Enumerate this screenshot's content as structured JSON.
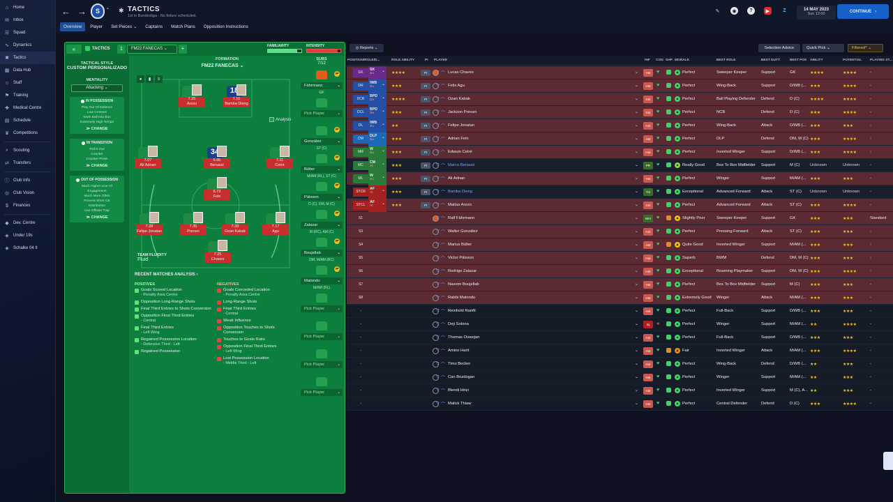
{
  "colors": {
    "accent": "#1560c9",
    "pitch": "#0c7e3d",
    "red_row": "#5b2a33"
  },
  "sidebar": {
    "items": [
      {
        "label": "Home",
        "icon": "home-icon"
      },
      {
        "label": "Inbox",
        "icon": "inbox-icon"
      },
      {
        "label": "Squad",
        "icon": "squad-icon"
      },
      {
        "label": "Dynamics",
        "icon": "dynamics-icon"
      },
      {
        "label": "Tactics",
        "icon": "tactics-icon",
        "active": true
      },
      {
        "label": "Data Hub",
        "icon": "data-hub-icon"
      },
      {
        "label": "Staff",
        "icon": "staff-icon"
      },
      {
        "label": "Training",
        "icon": "training-icon"
      },
      {
        "label": "Medical Centre",
        "icon": "medical-icon"
      },
      {
        "label": "Schedule",
        "icon": "schedule-icon"
      },
      {
        "label": "Competitions",
        "icon": "competitions-icon"
      },
      {
        "label": "Scouting",
        "icon": "scouting-icon"
      },
      {
        "label": "Transfers",
        "icon": "transfers-icon"
      },
      {
        "label": "Club Info",
        "icon": "club-info-icon"
      },
      {
        "label": "Club Vision",
        "icon": "club-vision-icon"
      },
      {
        "label": "Finances",
        "icon": "finances-icon"
      },
      {
        "label": "Dev. Centre",
        "icon": "dev-centre-icon"
      },
      {
        "label": "Under 19s",
        "icon": "team-icon"
      },
      {
        "label": "Schalke 04 II",
        "icon": "team-icon"
      }
    ]
  },
  "header": {
    "title": "TACTICS",
    "subtitle": "1st in Bundesliga - No fixture scheduled.",
    "date": "14 MAY 2023",
    "time": "Sun 12:00",
    "continue_label": "CONTINUE",
    "tabs": [
      "Overview",
      "Player",
      "Set Pieces",
      "Captains",
      "Match Plans",
      "Opposition Instructions"
    ]
  },
  "tactics_bar": {
    "label": "TACTICS",
    "tactic_number": "1",
    "tactic_name": "FM22 FANECAS",
    "familiarity_label": "FAMILIARITY",
    "familiarity": 0.88,
    "intensity_label": "INTENSITY",
    "intensity": 0.92
  },
  "style": {
    "title": "TACTICAL STYLE",
    "name": "CUSTOM PERSONALIZADO",
    "mentality_title": "MENTALITY",
    "mentality": "Attacking",
    "phases": [
      {
        "title": "IN POSSESSION",
        "lines": [
          "Play Out Of Defence",
          "Low Crosses",
          "Work Ball Into Box",
          "Extremely High Tempo"
        ],
        "change": "CHANGE"
      },
      {
        "title": "IN TRANSITION",
        "lines": [
          "Roll It Out",
          "Counter",
          "Counter-Press"
        ],
        "change": "CHANGE"
      },
      {
        "title": "OUT OF POSSESSION",
        "lines": [
          "Much Higher Line Of",
          "Engagement",
          "Much More Often",
          "Prevent Short GK",
          "Distribution",
          "Use Offside Trap"
        ],
        "change": "CHANGE"
      }
    ]
  },
  "formation": {
    "label": "FORMATION",
    "value": "FM22 FANECAS",
    "analysis": "Analysis"
  },
  "players_on_pitch": [
    {
      "rating": "7.25",
      "name": "Arezo",
      "num": ""
    },
    {
      "rating": "7.10",
      "name": "Bamba Dieng",
      "num": "18"
    },
    {
      "rating": "7.07",
      "name": "Ali Adnan",
      "num": ""
    },
    {
      "rating": "6.86",
      "name": "Benassi",
      "num": "34"
    },
    {
      "rating": "7.11",
      "name": "Cetré",
      "num": ""
    },
    {
      "rating": "6.73",
      "name": "Fein",
      "num": ""
    },
    {
      "rating": "7.28",
      "name": "Felipe Jonatan",
      "num": ""
    },
    {
      "rating": "7.35",
      "name": "Porozo",
      "num": ""
    },
    {
      "rating": "7.39",
      "name": "Ozan Kabak",
      "num": ""
    },
    {
      "rating": "7.17",
      "name": "Agu",
      "num": ""
    },
    {
      "rating": "7.25",
      "name": "Chaves",
      "num": ""
    }
  ],
  "fluidity": {
    "label": "TEAM FLUIDITY",
    "value": "Fluid"
  },
  "analysis": {
    "title": "RECENT MATCHES ANALYSIS",
    "positives_title": "POSITIVES",
    "negatives_title": "NEGATIVES",
    "positives": [
      {
        "text": "Goals Scored Location",
        "sub": "- Penalty Area Centre"
      },
      {
        "text": "Opposition Long-Range Shots",
        "sub": ""
      },
      {
        "text": "Final Third Entries to Shots Conversion",
        "sub": ""
      },
      {
        "text": "Opposition Final Third Entries",
        "sub": "- Central"
      },
      {
        "text": "Final Third Entries",
        "sub": "- Left Wing"
      },
      {
        "text": "Regained Possession Location",
        "sub": "- Defensive Third - Left"
      },
      {
        "text": "Regained Possession",
        "sub": ""
      }
    ],
    "negatives": [
      {
        "text": "Goals Conceded Location",
        "sub": "- Penalty Area Centre"
      },
      {
        "text": "Long-Range Shots",
        "sub": ""
      },
      {
        "text": "Final Third Entries",
        "sub": "- Central"
      },
      {
        "text": "Weak Influence",
        "sub": ""
      },
      {
        "text": "Opposition Touches to Shots Conversion",
        "sub": ""
      },
      {
        "text": "Touches to Goals Ratio",
        "sub": ""
      },
      {
        "text": "Opposition Final Third Entries",
        "sub": "- Left Wing"
      },
      {
        "text": "Lost Possession Location",
        "sub": "- Middle Third - Left"
      }
    ]
  },
  "subs": {
    "title": "SUBS",
    "count": "7/12",
    "slots": [
      {
        "name": "Fährmann",
        "role": "GK"
      },
      {
        "name": "Pick Player",
        "role": ""
      },
      {
        "name": "González",
        "role": "ST (C)"
      },
      {
        "name": "Bülter",
        "role": "M/AM (RL), ST (C)"
      },
      {
        "name": "Pálsson",
        "role": "D (C), DM, M (C)"
      },
      {
        "name": "Zalazar",
        "role": "M (RC), AM (C)"
      },
      {
        "name": "Boujellab",
        "role": "DM, M/AM (RC)"
      },
      {
        "name": "Matondo",
        "role": "M/AM (RL)"
      },
      {
        "name": "Pick Player",
        "role": ""
      },
      {
        "name": "Pick Player",
        "role": ""
      },
      {
        "name": "Pick Player",
        "role": ""
      },
      {
        "name": "Pick Player",
        "role": ""
      }
    ]
  },
  "table": {
    "reports_label": "Reports",
    "selection_advice": "Selection Advice",
    "quick_pick": "Quick Pick",
    "filtered": "Filtered*",
    "headers": [
      "POSITION/ROLE/D...",
      "ROLE ABILITY",
      "PI",
      "PLAYER",
      "INF",
      "CON",
      "SHP",
      "MORALE",
      "BEST ROLE",
      "BEST DUTY",
      "BEST POS",
      "ABILITY",
      "POTENTIAL",
      "PLAYING ST..."
    ],
    "rows": [
      {
        "pos": "GK",
        "role": "SK",
        "duty": "Su",
        "role_stars": "★★★★",
        "name": "Lucas Chaves",
        "inf": "Hot",
        "morale": "Perfect",
        "best_role": "Sweeper Keeper",
        "best_duty": "Support",
        "best_pos": "GK",
        "ability": "★★★★",
        "potential": "★★★★",
        "playing": "-"
      },
      {
        "pos": "DR",
        "role": "IWB",
        "duty": "Su",
        "role_stars": "★★★",
        "name": "Felix Agu",
        "inf": "Hot",
        "morale": "Perfect",
        "best_role": "Wing-Back",
        "best_duty": "Support",
        "best_pos": "D/WB (...",
        "ability": "★★★",
        "potential": "★★★★",
        "playing": "-"
      },
      {
        "pos": "DCR",
        "role": "BPD",
        "duty": "De",
        "role_stars": "★★★★",
        "name": "Ozan Kabak",
        "inf": "Hot",
        "morale": "Perfect",
        "best_role": "Ball Playing Defender",
        "best_duty": "Defend",
        "best_pos": "D (C)",
        "ability": "★★★★",
        "potential": "★★★★",
        "playing": "-"
      },
      {
        "pos": "DCL",
        "role": "BPD",
        "duty": "De",
        "role_stars": "★★★",
        "name": "Jackson Porozo",
        "inf": "Hot",
        "morale": "Perfect",
        "best_role": "NCB",
        "best_duty": "Defend",
        "best_pos": "D (C)",
        "ability": "★★★",
        "potential": "★★★★",
        "playing": "-"
      },
      {
        "pos": "DL",
        "role": "IWB",
        "duty": "Su",
        "role_stars": "★★",
        "name": "Felipe Jonatan",
        "inf": "Hot",
        "morale": "Perfect",
        "best_role": "Wing-Back",
        "best_duty": "Attack",
        "best_pos": "D/WB (...",
        "ability": "★★★",
        "potential": "★★★",
        "playing": "-"
      },
      {
        "pos": "DM",
        "role": "DLP",
        "duty": "Su",
        "role_stars": "★★★",
        "name": "Adrian Fein",
        "inf": "Hot",
        "morale": "Perfect",
        "best_role": "DLP",
        "best_duty": "Defend",
        "best_pos": "DM, M (C)",
        "ability": "★★★",
        "potential": "★★★★",
        "playing": "-"
      },
      {
        "pos": "MR",
        "role": "W",
        "duty": "Su",
        "role_stars": "★★★",
        "name": "Edwuin Cetré",
        "inf": "Hot",
        "morale": "Perfect",
        "best_role": "Inverted Winger",
        "best_duty": "Support",
        "best_pos": "D/WB (...",
        "ability": "★★★",
        "potential": "★★★★",
        "playing": "-"
      },
      {
        "pos": "MC",
        "role": "CM",
        "duty": "At",
        "role_stars": "★★★",
        "name": "Marco Benassi",
        "inf": "PR",
        "morale": "Really Good",
        "best_role": "Box To Box Midfielder",
        "best_duty": "Support",
        "best_pos": "M (C)",
        "ability": "Unknown",
        "potential": "Unknown",
        "playing": "-",
        "loan": true
      },
      {
        "pos": "ML",
        "role": "W",
        "duty": "Su",
        "role_stars": "★★★",
        "name": "Ali Adnan",
        "inf": "Hot",
        "morale": "Perfect",
        "best_role": "Winger",
        "best_duty": "Support",
        "best_pos": "M/AM (...",
        "ability": "★★★",
        "potential": "★★★",
        "playing": "-"
      },
      {
        "pos": "STCR",
        "role": "AF",
        "duty": "At",
        "role_stars": "★★★",
        "name": "Bamba Dieng",
        "inf": "Tm",
        "morale": "Exceptional",
        "best_role": "Advanced Forward",
        "best_duty": "Attack",
        "best_pos": "ST (C)",
        "ability": "Unknown",
        "potential": "Unknown",
        "playing": "-",
        "loan": true
      },
      {
        "pos": "STCL",
        "role": "AF",
        "duty": "At",
        "role_stars": "★★★",
        "name": "Matías Arezo",
        "inf": "Hot",
        "morale": "Perfect",
        "best_role": "Advanced Forward",
        "best_duty": "Attack",
        "best_pos": "ST (C)",
        "ability": "★★★",
        "potential": "★★★★",
        "playing": "-"
      },
      {
        "pos": "S1",
        "role": "",
        "duty": "",
        "role_stars": "",
        "name": "Ralf Fährmann",
        "inf": "Wrn",
        "morale": "Slightly Poor",
        "best_role": "Sweeper Keeper",
        "best_duty": "Support",
        "best_pos": "GK",
        "ability": "★★★",
        "potential": "★★★",
        "playing": "Standard"
      },
      {
        "pos": "S3",
        "role": "",
        "duty": "",
        "role_stars": "",
        "name": "Walter González",
        "inf": "Hot",
        "morale": "Perfect",
        "best_role": "Pressing Forward",
        "best_duty": "Attack",
        "best_pos": "ST (C)",
        "ability": "★★★",
        "potential": "★★★",
        "playing": "-"
      },
      {
        "pos": "S4",
        "role": "",
        "duty": "",
        "role_stars": "",
        "name": "Marius Bülter",
        "inf": "Hot",
        "morale": "Quite Good",
        "best_role": "Inverted Winger",
        "best_duty": "Support",
        "best_pos": "M/AM (...",
        "ability": "★★★",
        "potential": "★★★",
        "playing": "-"
      },
      {
        "pos": "S5",
        "role": "",
        "duty": "",
        "role_stars": "",
        "name": "Victor Pálsson",
        "inf": "Hot",
        "morale": "Superb",
        "best_role": "BWM",
        "best_duty": "Defend",
        "best_pos": "DM, M (C)",
        "ability": "★★★",
        "potential": "★★★",
        "playing": "-"
      },
      {
        "pos": "S6",
        "role": "",
        "duty": "",
        "role_stars": "",
        "name": "Rodrigo Zalazar",
        "inf": "Hot",
        "morale": "Exceptional",
        "best_role": "Roaming Playmaker",
        "best_duty": "Support",
        "best_pos": "DM, M (C)",
        "ability": "★★★",
        "potential": "★★★★",
        "playing": "-"
      },
      {
        "pos": "S7",
        "role": "",
        "duty": "",
        "role_stars": "",
        "name": "Nassim Boujellab",
        "inf": "Hot",
        "morale": "Perfect",
        "best_role": "Box To Box Midfielder",
        "best_duty": "Support",
        "best_pos": "M (C)",
        "ability": "★★★",
        "potential": "★★★",
        "playing": "-"
      },
      {
        "pos": "S8",
        "role": "",
        "duty": "",
        "role_stars": "",
        "name": "Rabbi Matondo",
        "inf": "Hot",
        "morale": "Extremely Good",
        "best_role": "Winger",
        "best_duty": "Attack",
        "best_pos": "M/AM (...",
        "ability": "★★★",
        "potential": "★★★",
        "playing": "-"
      },
      {
        "pos": "-",
        "role": "",
        "duty": "",
        "role_stars": "",
        "name": "Reinhold Ranftl",
        "inf": "Hot",
        "morale": "Perfect",
        "best_role": "Full-Back",
        "best_duty": "Support",
        "best_pos": "D/WB (...",
        "ability": "★★★",
        "potential": "★★★",
        "playing": "-"
      },
      {
        "pos": "-",
        "role": "",
        "duty": "",
        "role_stars": "",
        "name": "Deji Sotona",
        "inf": "Inj",
        "morale": "Perfect",
        "best_role": "Winger",
        "best_duty": "Support",
        "best_pos": "M/AM (...",
        "ability": "★★",
        "potential": "★★★★",
        "playing": "-"
      },
      {
        "pos": "-",
        "role": "",
        "duty": "",
        "role_stars": "",
        "name": "Thomas Ouwejan",
        "inf": "Hot",
        "morale": "Perfect",
        "best_role": "Full-Back",
        "best_duty": "Support",
        "best_pos": "D/WB (...",
        "ability": "★★★",
        "potential": "★★★",
        "playing": "-"
      },
      {
        "pos": "-",
        "role": "",
        "duty": "",
        "role_stars": "",
        "name": "Amine Harit",
        "inf": "Hot",
        "morale": "Fair",
        "best_role": "Inverted Winger",
        "best_duty": "Attack",
        "best_pos": "M/AM (...",
        "ability": "★★★",
        "potential": "★★★★",
        "playing": "-"
      },
      {
        "pos": "-",
        "role": "",
        "duty": "",
        "role_stars": "",
        "name": "Timo Becker",
        "inf": "Hot",
        "morale": "Perfect",
        "best_role": "Wing-Back",
        "best_duty": "Defend",
        "best_pos": "D/WB (...",
        "ability": "★★",
        "potential": "★★★",
        "playing": "-"
      },
      {
        "pos": "-",
        "role": "",
        "duty": "",
        "role_stars": "",
        "name": "Can Bozdogan",
        "inf": "Hot",
        "morale": "Perfect",
        "best_role": "Winger",
        "best_duty": "Support",
        "best_pos": "M/AM (...",
        "ability": "★★",
        "potential": "★★★",
        "playing": "-"
      },
      {
        "pos": "-",
        "role": "",
        "duty": "",
        "role_stars": "",
        "name": "Blendi Idrizi",
        "inf": "Hot",
        "morale": "Perfect",
        "best_role": "Inverted Winger",
        "best_duty": "Support",
        "best_pos": "M (C), A...",
        "ability": "★★",
        "potential": "★★★",
        "playing": "-"
      },
      {
        "pos": "-",
        "role": "",
        "duty": "",
        "role_stars": "",
        "name": "Malick Thiaw",
        "inf": "Hot",
        "morale": "Perfect",
        "best_role": "Central Defender",
        "best_duty": "Defend",
        "best_pos": "D (C)",
        "ability": "★★★",
        "potential": "★★★★",
        "playing": "-"
      }
    ]
  }
}
